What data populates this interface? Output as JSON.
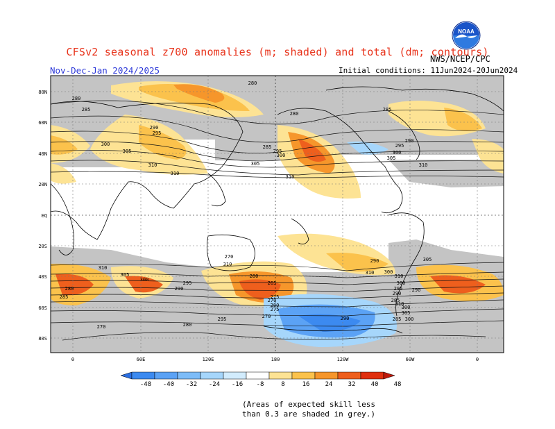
{
  "header": {
    "title": "CFSv2 seasonal z700 anomalies (m; shaded) and total (dm; contours)",
    "period": "Nov-Dec-Jan 2024/2025",
    "initial_conditions": "Initial conditions: 11Jun2024-20Jun2024",
    "agency": "NWS/NCEP/CPC",
    "logo_text": "NOAA"
  },
  "map": {
    "lat_labels": [
      "80N",
      "60N",
      "40N",
      "20N",
      "EQ",
      "20S",
      "40S",
      "60S",
      "80S"
    ],
    "lon_labels": [
      "0",
      "60E",
      "120E",
      "180",
      "120W",
      "60W",
      "0"
    ],
    "contour_labels": [
      "280",
      "280",
      "285",
      "290",
      "295",
      "300",
      "305",
      "310",
      "310",
      "280",
      "285",
      "295",
      "300",
      "305",
      "310",
      "285",
      "290",
      "295",
      "300",
      "305",
      "310",
      "310",
      "305",
      "300",
      "295",
      "290",
      "285",
      "280",
      "270",
      "310",
      "310",
      "305",
      "300",
      "295",
      "290",
      "285",
      "280",
      "275",
      "270",
      "310",
      "305",
      "300",
      "295",
      "290",
      "285",
      "280",
      "275",
      "270",
      "265",
      "270",
      "280",
      "290",
      "300",
      "310",
      "300",
      "290"
    ]
  },
  "colorbar": {
    "labels": [
      "-48",
      "-40",
      "-32",
      "-24",
      "-16",
      "-8",
      "8",
      "16",
      "24",
      "32",
      "40",
      "48"
    ],
    "colors": [
      "#2a6ee0",
      "#3c8af0",
      "#5ba2f5",
      "#7dbcf8",
      "#a6d6fb",
      "#d2ecfd",
      "#ffffff",
      "#fde394",
      "#fbc24c",
      "#f6962b",
      "#ee5f1d",
      "#e0300f",
      "#be1a0a"
    ]
  },
  "footnote": {
    "line1": "(Areas of expected skill less",
    "line2": "than 0.3 are shaded in grey.)"
  }
}
